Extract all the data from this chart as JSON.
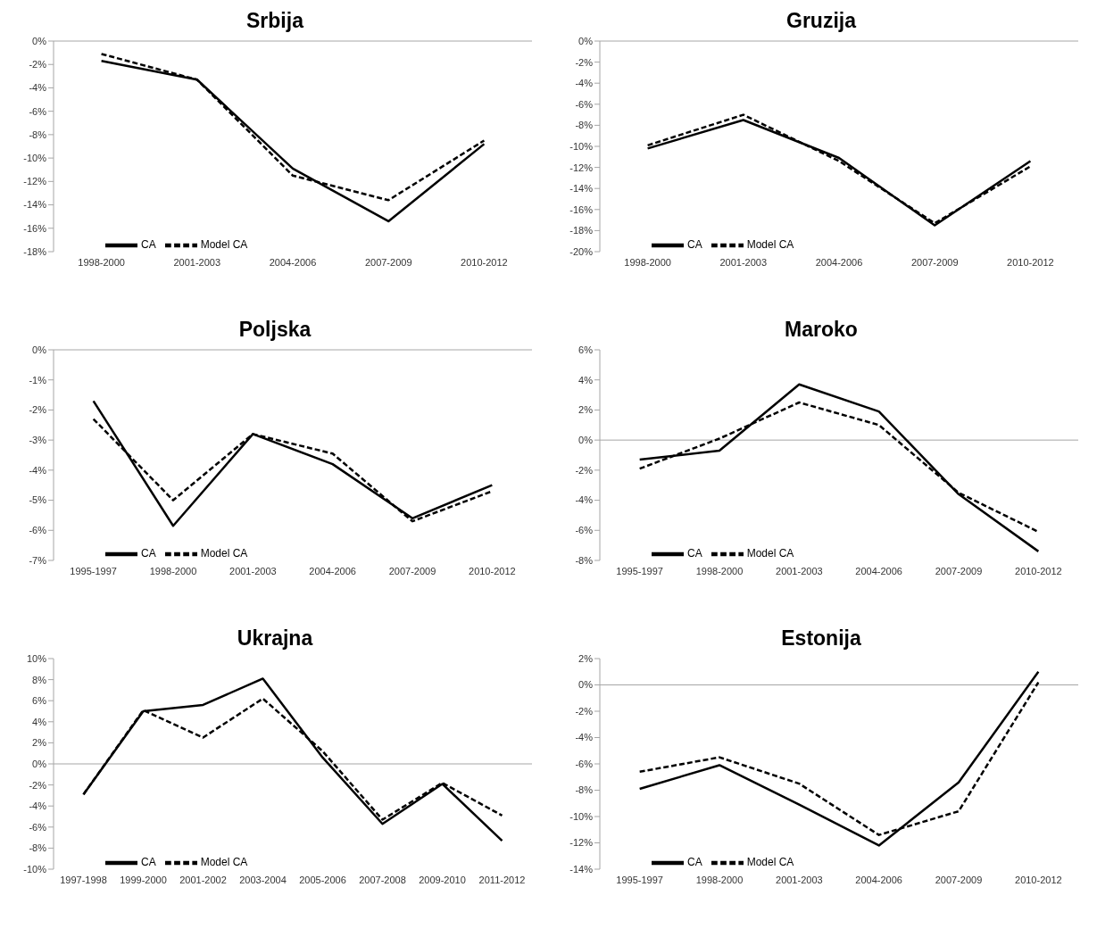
{
  "chart_data": [
    {
      "type": "line",
      "title": "Srbija",
      "categories": [
        "1998-2000",
        "2001-2003",
        "2004-2006",
        "2007-2009",
        "2010-2012"
      ],
      "series": [
        {
          "name": "CA",
          "color": "#000000",
          "line_style": "solid",
          "values": [
            -1.7,
            -3.3,
            -10.9,
            -15.4,
            -8.8
          ]
        },
        {
          "name": "Model CA",
          "color": "#000000",
          "line_style": "dashed",
          "values": [
            -1.1,
            -3.3,
            -11.5,
            -13.6,
            -8.5
          ]
        }
      ],
      "ylim": [
        -18,
        0
      ],
      "yticks": [
        {
          "value": 0,
          "label": "0%"
        },
        {
          "value": -2,
          "label": "-2%"
        },
        {
          "value": -4,
          "label": "-4%"
        },
        {
          "value": -6,
          "label": "-6%"
        },
        {
          "value": -8,
          "label": "-8%"
        },
        {
          "value": -10,
          "label": "-10%"
        },
        {
          "value": -12,
          "label": "-12%"
        },
        {
          "value": -14,
          "label": "-14%"
        },
        {
          "value": -16,
          "label": "-16%"
        },
        {
          "value": -18,
          "label": "-18%"
        }
      ],
      "ref_lines": [
        {
          "axis": "y",
          "value": 0,
          "color": "#a6a6a6"
        }
      ],
      "legend": "bottom left",
      "marker": "none"
    },
    {
      "type": "line",
      "title": "Gruzija",
      "categories": [
        "1998-2000",
        "2001-2003",
        "2004-2006",
        "2007-2009",
        "2010-2012"
      ],
      "series": [
        {
          "name": "CA",
          "color": "#000000",
          "line_style": "solid",
          "values": [
            -10.2,
            -7.5,
            -11.1,
            -17.5,
            -11.4
          ]
        },
        {
          "name": "Model CA",
          "color": "#000000",
          "line_style": "dashed",
          "values": [
            -9.9,
            -7.0,
            -11.4,
            -17.3,
            -11.9
          ]
        }
      ],
      "ylim": [
        -20,
        0
      ],
      "yticks": [
        {
          "value": 0,
          "label": "0%"
        },
        {
          "value": -2,
          "label": "-2%"
        },
        {
          "value": -4,
          "label": "-4%"
        },
        {
          "value": -6,
          "label": "-6%"
        },
        {
          "value": -8,
          "label": "-8%"
        },
        {
          "value": -10,
          "label": "-10%"
        },
        {
          "value": -12,
          "label": "-12%"
        },
        {
          "value": -14,
          "label": "-14%"
        },
        {
          "value": -16,
          "label": "-16%"
        },
        {
          "value": -18,
          "label": "-18%"
        },
        {
          "value": -20,
          "label": "-20%"
        }
      ],
      "ref_lines": [
        {
          "axis": "y",
          "value": 0,
          "color": "#a6a6a6"
        }
      ],
      "legend": "bottom left",
      "marker": "none"
    },
    {
      "type": "line",
      "title": "Poljska",
      "categories": [
        "1995-1997",
        "1998-2000",
        "2001-2003",
        "2004-2006",
        "2007-2009",
        "2010-2012"
      ],
      "series": [
        {
          "name": "CA",
          "color": "#000000",
          "line_style": "solid",
          "values": [
            -1.7,
            -5.85,
            -2.8,
            -3.8,
            -5.6,
            -4.5
          ]
        },
        {
          "name": "Model CA",
          "color": "#000000",
          "line_style": "dashed",
          "values": [
            -2.3,
            -5.0,
            -2.8,
            -3.45,
            -5.7,
            -4.7
          ]
        }
      ],
      "ylim": [
        -7,
        0
      ],
      "yticks": [
        {
          "value": 0,
          "label": "0%"
        },
        {
          "value": -1,
          "label": "-1%"
        },
        {
          "value": -2,
          "label": "-2%"
        },
        {
          "value": -3,
          "label": "-3%"
        },
        {
          "value": -4,
          "label": "-4%"
        },
        {
          "value": -5,
          "label": "-5%"
        },
        {
          "value": -6,
          "label": "-6%"
        },
        {
          "value": -7,
          "label": "-7%"
        }
      ],
      "ref_lines": [
        {
          "axis": "y",
          "value": 0,
          "color": "#a6a6a6"
        }
      ],
      "legend": "bottom left",
      "marker": "none"
    },
    {
      "type": "line",
      "title": "Maroko",
      "categories": [
        "1995-1997",
        "1998-2000",
        "2001-2003",
        "2004-2006",
        "2007-2009",
        "2010-2012"
      ],
      "series": [
        {
          "name": "CA",
          "color": "#000000",
          "line_style": "solid",
          "values": [
            -1.3,
            -0.7,
            3.7,
            1.9,
            -3.6,
            -7.4
          ]
        },
        {
          "name": "Model CA",
          "color": "#000000",
          "line_style": "dashed",
          "values": [
            -1.9,
            0.1,
            2.5,
            1.0,
            -3.5,
            -6.1
          ]
        }
      ],
      "ylim": [
        -8,
        6
      ],
      "yticks": [
        {
          "value": 6,
          "label": "6%"
        },
        {
          "value": 4,
          "label": "4%"
        },
        {
          "value": 2,
          "label": "2%"
        },
        {
          "value": 0,
          "label": "0%"
        },
        {
          "value": -2,
          "label": "-2%"
        },
        {
          "value": -4,
          "label": "-4%"
        },
        {
          "value": -6,
          "label": "-6%"
        },
        {
          "value": -8,
          "label": "-8%"
        }
      ],
      "ref_lines": [
        {
          "axis": "y",
          "value": 0,
          "color": "#a6a6a6"
        }
      ],
      "legend": "bottom left",
      "marker": "none"
    },
    {
      "type": "line",
      "title": "Ukrajna",
      "categories": [
        "1997-1998",
        "1999-2000",
        "2001-2002",
        "2003-2004",
        "2005-2006",
        "2007-2008",
        "2009-2010",
        "2011-2012"
      ],
      "series": [
        {
          "name": "CA",
          "color": "#000000",
          "line_style": "solid",
          "values": [
            -2.9,
            5.0,
            5.6,
            8.1,
            0.6,
            -5.7,
            -1.9,
            -7.3
          ]
        },
        {
          "name": "Model CA",
          "color": "#000000",
          "line_style": "dashed",
          "values": [
            -2.9,
            5.1,
            2.5,
            6.2,
            1.2,
            -5.3,
            -1.8,
            -4.9
          ]
        }
      ],
      "ylim": [
        -10,
        10
      ],
      "yticks": [
        {
          "value": 10,
          "label": "10%"
        },
        {
          "value": 8,
          "label": "8%"
        },
        {
          "value": 6,
          "label": "6%"
        },
        {
          "value": 4,
          "label": "4%"
        },
        {
          "value": 2,
          "label": "2%"
        },
        {
          "value": 0,
          "label": "0%"
        },
        {
          "value": -2,
          "label": "-2%"
        },
        {
          "value": -4,
          "label": "-4%"
        },
        {
          "value": -6,
          "label": "-6%"
        },
        {
          "value": -8,
          "label": "-8%"
        },
        {
          "value": -10,
          "label": "-10%"
        }
      ],
      "ref_lines": [
        {
          "axis": "y",
          "value": 0,
          "color": "#a6a6a6"
        }
      ],
      "legend": "bottom left",
      "marker": "none"
    },
    {
      "type": "line",
      "title": "Estonija",
      "categories": [
        "1995-1997",
        "1998-2000",
        "2001-2003",
        "2004-2006",
        "2007-2009",
        "2010-2012"
      ],
      "series": [
        {
          "name": "CA",
          "color": "#000000",
          "line_style": "solid",
          "values": [
            -7.9,
            -6.1,
            -9.1,
            -12.2,
            -7.4,
            1.0
          ]
        },
        {
          "name": "Model CA",
          "color": "#000000",
          "line_style": "dashed",
          "values": [
            -6.6,
            -5.5,
            -7.5,
            -11.4,
            -9.6,
            0.2
          ]
        }
      ],
      "ylim": [
        -14,
        2
      ],
      "yticks": [
        {
          "value": 2,
          "label": "2%"
        },
        {
          "value": 0,
          "label": "0%"
        },
        {
          "value": -2,
          "label": "-2%"
        },
        {
          "value": -4,
          "label": "-4%"
        },
        {
          "value": -6,
          "label": "-6%"
        },
        {
          "value": -8,
          "label": "-8%"
        },
        {
          "value": -10,
          "label": "-10%"
        },
        {
          "value": -12,
          "label": "-12%"
        },
        {
          "value": -14,
          "label": "-14%"
        }
      ],
      "ref_lines": [
        {
          "axis": "y",
          "value": 0,
          "color": "#a6a6a6"
        }
      ],
      "legend": "bottom left",
      "marker": "none"
    }
  ]
}
